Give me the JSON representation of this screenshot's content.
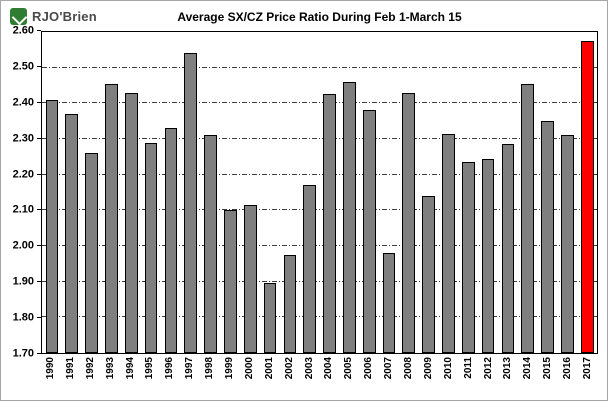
{
  "logo": {
    "brand": "RJO'Brien",
    "accent_color": "#2f7d32"
  },
  "chart_data": {
    "type": "bar",
    "title": "Average SX/CZ Price Ratio During Feb 1-March 15",
    "categories": [
      "1990",
      "1991",
      "1992",
      "1993",
      "1994",
      "1995",
      "1996",
      "1997",
      "1998",
      "1999",
      "2000",
      "2001",
      "2002",
      "2003",
      "2004",
      "2005",
      "2006",
      "2007",
      "2008",
      "2009",
      "2010",
      "2011",
      "2012",
      "2013",
      "2014",
      "2015",
      "2016",
      "2017"
    ],
    "values": [
      2.41,
      2.37,
      2.26,
      2.455,
      2.43,
      2.29,
      2.33,
      2.54,
      2.31,
      2.1,
      2.115,
      1.895,
      1.975,
      2.17,
      2.425,
      2.46,
      2.38,
      1.98,
      2.43,
      2.14,
      2.315,
      2.235,
      2.245,
      2.285,
      2.455,
      2.35,
      2.31,
      2.575
    ],
    "ylim": [
      1.7,
      2.6
    ],
    "ytick_step": 0.1,
    "yticks": [
      "1.70",
      "1.80",
      "1.90",
      "2.00",
      "2.10",
      "2.20",
      "2.30",
      "2.40",
      "2.50",
      "2.60"
    ],
    "grid": true,
    "gridline_style": "dash-dot",
    "legend_position": "none",
    "bar_color": "#7f7f7f",
    "bar_border_color": "#000000",
    "highlight_category": "2017",
    "highlight_color": "#ff0000"
  }
}
